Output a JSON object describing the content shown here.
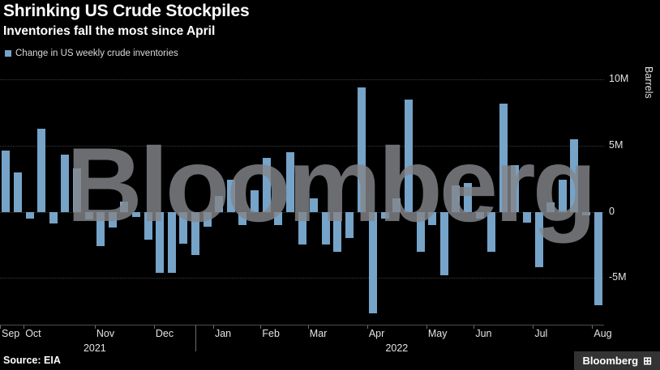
{
  "header": {
    "title": "Shrinking US Crude Stockpiles",
    "subtitle": "Inventories fall the most since April"
  },
  "legend": {
    "label": "Change in US weekly crude inventories",
    "swatch_color": "#76a3c8"
  },
  "watermark": {
    "text": "Bloomberg"
  },
  "source": {
    "text": "Source: EIA"
  },
  "logo": {
    "text": "Bloomberg",
    "icon": "⊞"
  },
  "axis": {
    "y_label": "Barrels",
    "y_ticks": [
      {
        "v": 10,
        "label": "10M"
      },
      {
        "v": 5,
        "label": "5M"
      },
      {
        "v": 0,
        "label": "0"
      },
      {
        "v": -5,
        "label": "-5M"
      }
    ]
  },
  "chart_data": {
    "type": "bar",
    "title": "Shrinking US Crude Stockpiles",
    "series_name": "Change in US weekly crude inventories",
    "unit": "M barrels",
    "ylabel": "Barrels",
    "ylim": [
      -8.6,
      11
    ],
    "grid": true,
    "bar_color": "#76a3c8",
    "values": [
      4.6,
      3.0,
      -0.5,
      6.3,
      -0.9,
      4.3,
      3.3,
      -0.6,
      -2.6,
      -1.2,
      0.8,
      -0.4,
      -2.1,
      -4.6,
      -4.6,
      -2.4,
      -3.3,
      -1.1,
      1.2,
      2.4,
      -1.0,
      1.6,
      4.1,
      -1.0,
      4.5,
      -2.5,
      1.0,
      -2.5,
      -3.0,
      -2.0,
      9.4,
      -7.7,
      -0.5,
      1.0,
      8.5,
      -3.0,
      -1.0,
      -4.8,
      2.0,
      2.2,
      -0.5,
      -3.0,
      8.2,
      3.5,
      -0.8,
      -4.2,
      0.7,
      2.4,
      5.5,
      -0.3,
      -7.1
    ],
    "months": [
      {
        "label": "Sep",
        "start": 0
      },
      {
        "label": "Oct",
        "start": 2
      },
      {
        "label": "Nov",
        "start": 8
      },
      {
        "label": "Dec",
        "start": 13
      },
      {
        "label": "Jan",
        "start": 18
      },
      {
        "label": "Feb",
        "start": 22
      },
      {
        "label": "Mar",
        "start": 26
      },
      {
        "label": "Apr",
        "start": 31
      },
      {
        "label": "May",
        "start": 36
      },
      {
        "label": "Jun",
        "start": 40
      },
      {
        "label": "Jul",
        "start": 45
      },
      {
        "label": "Aug",
        "start": 50
      }
    ],
    "years": [
      {
        "label": "2021",
        "index": 8
      },
      {
        "label": "2022",
        "index": 33.5
      }
    ],
    "year_divider_index": 16.5
  }
}
